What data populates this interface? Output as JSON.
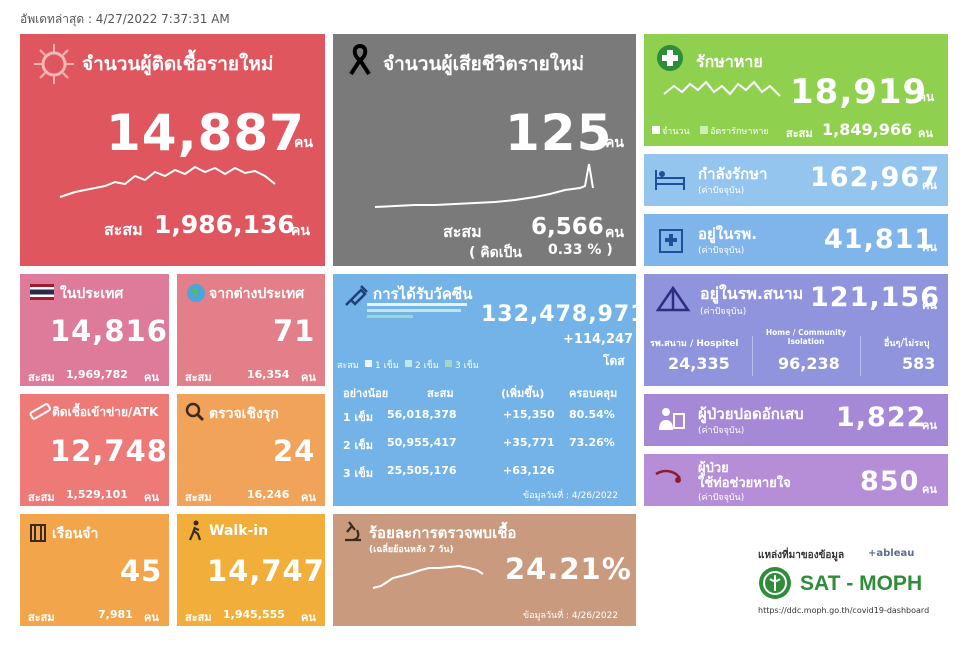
{
  "updated": "อัพเดทล่าสุด : 4/27/2022 7:37:31 AM",
  "unit": "คน",
  "accum_label": "สะสม",
  "new_cases": {
    "title": "จำนวนผู้ติดเชื้อรายใหม่",
    "value": "14,887",
    "accum": "1,986,136"
  },
  "deaths": {
    "title": "จำนวนผู้เสียชีวิตรายใหม่",
    "value": "125",
    "accum": "6,566",
    "pct_label": "( คิดเป็น",
    "pct": "0.33 % )"
  },
  "recovered": {
    "title": "รักษาหาย",
    "value": "18,919",
    "legend_count": "จำนวน",
    "legend_rate": "อัตรารักษาหาย",
    "accum": "1,849,966"
  },
  "treating": {
    "title": "กำลังรักษา",
    "sub": "(ค่าปัจจุบัน)",
    "value": "162,967"
  },
  "hospital": {
    "title": "อยู่ในรพ.",
    "sub": "(ค่าปัจจุบัน)",
    "value": "41,811"
  },
  "field_hospital": {
    "title": "อยู่ในรพ.สนาม",
    "sub": "(ค่าปัจจุบัน)",
    "value": "121,156",
    "cols": [
      {
        "label": "รพ.สนาม / Hospitel",
        "value": "24,335"
      },
      {
        "label": "Home / Community Isolation",
        "value": "96,238"
      },
      {
        "label": "อื่นๆ/ไม่ระบุ",
        "value": "583"
      }
    ]
  },
  "pneumonia": {
    "title": "ผู้ป่วยปอดอักเสบ",
    "sub": "(ค่าปัจจุบัน)",
    "value": "1,822"
  },
  "ventilator": {
    "title1": "ผู้ป่วย",
    "title2": "ใช้ท่อช่วยหายใจ",
    "sub": "(ค่าปัจจุบัน)",
    "value": "850"
  },
  "domestic": {
    "title": "ในประเทศ",
    "value": "14,816",
    "accum": "1,969,782"
  },
  "abroad": {
    "title": "จากต่างประเทศ",
    "value": "71",
    "accum": "16,354"
  },
  "atk": {
    "title": "ติดเชื้อเข้าข่าย/ATK",
    "value": "12,748",
    "accum": "1,529,101"
  },
  "active_search": {
    "title": "ตรวจเชิงรุก",
    "value": "24",
    "accum": "16,246"
  },
  "prison": {
    "title": "เรือนจำ",
    "value": "45",
    "accum": "7,981"
  },
  "walkin": {
    "title": "Walk-in",
    "value": "14,747",
    "accum": "1,945,555"
  },
  "vaccine": {
    "title": "การได้รับวัคซีน",
    "total": "132,478,971",
    "delta": "+114,247",
    "dose_unit": "โดส",
    "legend_prefix": "สะสม",
    "legend": [
      "1 เข็ม",
      "2 เข็ม",
      "3 เข็ม"
    ],
    "headers": [
      "อย่างน้อย",
      "สะสม",
      "(เพิ่มขึ้น)",
      "ครอบคลุม"
    ],
    "rows": [
      {
        "dose": "1 เข็ม",
        "accum": "56,018,378",
        "inc": "+15,350",
        "cover": "80.54%"
      },
      {
        "dose": "2 เข็ม",
        "accum": "50,955,417",
        "inc": "+35,771",
        "cover": "73.26%"
      },
      {
        "dose": "3 เข็ม",
        "accum": "25,505,176",
        "inc": "+63,126",
        "cover": ""
      }
    ],
    "data_date": "ข้อมูลวันที่ : 4/26/2022"
  },
  "positivity": {
    "title": "ร้อยละการตรวจพบเชื้อ",
    "sub": "(เฉลี่ยย้อนหลัง 7 วัน)",
    "value": "24.21%",
    "data_date": "ข้อมูลวันที่ : 4/26/2022"
  },
  "source": {
    "label": "แหล่งที่มาของข้อมูล",
    "tableau": "+ableau",
    "org": "SAT - MOPH",
    "url": "https://ddc.moph.go.th/covid19-dashboard"
  },
  "colors": {
    "red": "#e0565e",
    "grey": "#7a7a7a",
    "green": "#8fd14f",
    "blue": "#93c5ee",
    "blue2": "#7fb5ea",
    "purple": "#8f94dc",
    "violet": "#a588d6",
    "pink": "#de7a9a",
    "pink2": "#e27f88",
    "salmon": "#ee7a78",
    "orange": "#f2a35a",
    "orange2": "#f3a54b",
    "yellow": "#f2ae3a",
    "tan": "#c99a7e",
    "vblue": "#74b3e7"
  }
}
